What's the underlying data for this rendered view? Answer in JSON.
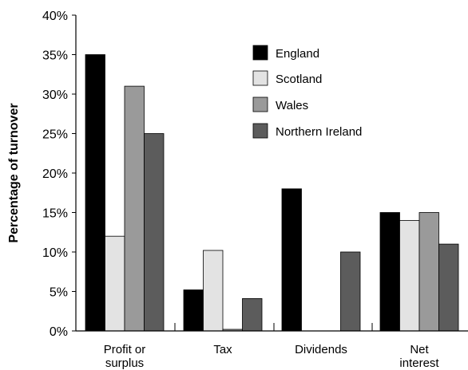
{
  "chart_data": {
    "type": "bar",
    "title": "",
    "xlabel": "",
    "ylabel": "Percentage of turnover",
    "ylim": [
      0,
      40
    ],
    "yticks": [
      "0%",
      "5%",
      "10%",
      "15%",
      "20%",
      "25%",
      "30%",
      "35%",
      "40%"
    ],
    "categories": [
      [
        "Profit or",
        "surplus"
      ],
      [
        "Tax"
      ],
      [
        "Dividends"
      ],
      [
        "Net",
        "interest"
      ]
    ],
    "series": [
      {
        "name": "England",
        "color": "#000000",
        "values": [
          35,
          5.2,
          18,
          15
        ]
      },
      {
        "name": "Scotland",
        "color": "#e3e3e3",
        "values": [
          12,
          10.2,
          0,
          14
        ]
      },
      {
        "name": "Wales",
        "color": "#9a9a9a",
        "values": [
          31,
          0.2,
          0,
          15
        ]
      },
      {
        "name": "Northern Ireland",
        "color": "#5c5c5c",
        "values": [
          25,
          4.1,
          10,
          11
        ]
      }
    ],
    "legend_position": "top-right",
    "grid": false
  }
}
